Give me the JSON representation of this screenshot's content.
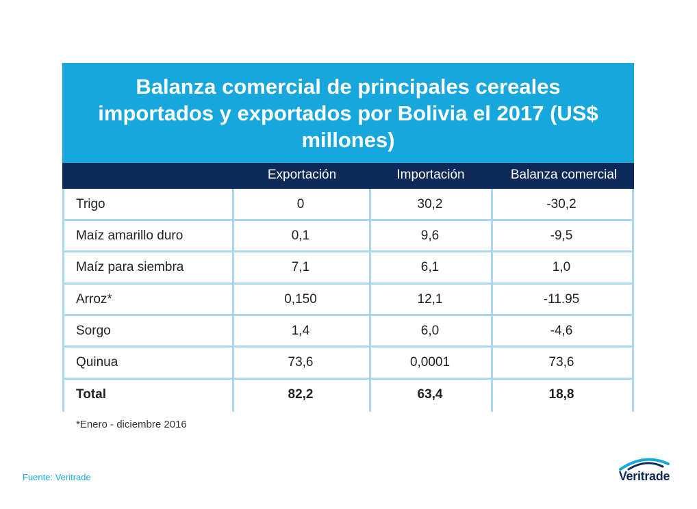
{
  "title": "Balanza comercial de principales cereales importados y exportados por Bolivia el 2017 (US$ millones)",
  "headers": [
    "",
    "Exportación",
    "Importación",
    "Balanza comercial"
  ],
  "rows": [
    {
      "product": "Trigo",
      "exportacion": "0",
      "importacion": "30,2",
      "balanza": "-30,2"
    },
    {
      "product": "Maíz amarillo duro",
      "exportacion": "0,1",
      "importacion": "9,6",
      "balanza": "-9,5"
    },
    {
      "product": "Maíz para siembra",
      "exportacion": "7,1",
      "importacion": "6,1",
      "balanza": "1,0"
    },
    {
      "product": "Arroz*",
      "exportacion": "0,150",
      "importacion": "12,1",
      "balanza": "-11.95"
    },
    {
      "product": "Sorgo",
      "exportacion": "1,4",
      "importacion": "6,0",
      "balanza": "-4,6"
    },
    {
      "product": "Quinua",
      "exportacion": "73,6",
      "importacion": "0,0001",
      "balanza": "73,6"
    },
    {
      "product": "Total",
      "exportacion": "82,2",
      "importacion": "63,4",
      "balanza": "18,8"
    }
  ],
  "footnote": "*Enero - diciembre 2016",
  "source": "Fuente: Veritrade",
  "logo_text": "Veritrade",
  "colors": {
    "title_band": "#18a7dc",
    "header_band": "#0e2a5a",
    "grid": "#a8d9ef",
    "source": "#18a7dc"
  },
  "chart_data": {
    "type": "table",
    "title": "Balanza comercial de principales cereales importados y exportados por Bolivia el 2017 (US$ millones)",
    "columns": [
      "Exportación",
      "Importación",
      "Balanza comercial"
    ],
    "categories": [
      "Trigo",
      "Maíz amarillo duro",
      "Maíz para siembra",
      "Arroz*",
      "Sorgo",
      "Quinua",
      "Total"
    ],
    "series": [
      {
        "name": "Exportación",
        "values": [
          0,
          0.1,
          7.1,
          0.15,
          1.4,
          73.6,
          82.2
        ]
      },
      {
        "name": "Importación",
        "values": [
          30.2,
          9.6,
          6.1,
          12.1,
          6.0,
          0.0001,
          63.4
        ]
      },
      {
        "name": "Balanza comercial",
        "values": [
          -30.2,
          -9.5,
          1.0,
          -11.95,
          -4.6,
          73.6,
          18.8
        ]
      }
    ]
  }
}
